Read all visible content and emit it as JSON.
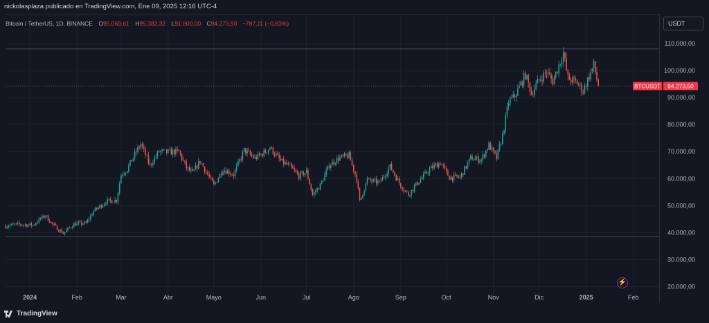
{
  "header": {
    "publisher_text": "nickolasplaza publicado en TradingView.com, Ene 09, 2025 12:16 UTC-4"
  },
  "legend": {
    "symbol": "Bitcoin / TetherUS, 1D, BINANCE",
    "open_label": "O",
    "open": "95.060,61",
    "high_label": "H",
    "high": "95.382,32",
    "low_label": "L",
    "low": "91.800,00",
    "close_label": "C",
    "close": "94.273,50",
    "change": "−787,11 (−0,83%)"
  },
  "currency_button": "USDT",
  "footer": {
    "brand": "TradingView"
  },
  "icons": {
    "logo": "tradingview-logo-icon",
    "alert": "lightning-bolt-icon"
  },
  "colors": {
    "up": "#26a69a",
    "down": "#ef5350",
    "background": "#131722",
    "price_label": "#f23645"
  },
  "chart_data": {
    "type": "candlestick",
    "symbol_tag": "BTCUSDT",
    "last_price_label": "94.273,50",
    "last_price": 94273.5,
    "ylim": [
      14000,
      121000
    ],
    "y_ticks": [
      {
        "value": 110000,
        "label": "110.000,00"
      },
      {
        "value": 100000,
        "label": "100.000,00"
      },
      {
        "value": 90000,
        "label": "90.000,00"
      },
      {
        "value": 80000,
        "label": "80.000,00"
      },
      {
        "value": 70000,
        "label": "70.000,00"
      },
      {
        "value": 60000,
        "label": "60.000,00"
      },
      {
        "value": 50000,
        "label": "50.000,00"
      },
      {
        "value": 40000,
        "label": "40.000,00"
      },
      {
        "value": 30000,
        "label": "30.000,00"
      },
      {
        "value": 20000,
        "label": "20.000,00"
      }
    ],
    "x_range": [
      "2023-12-16",
      "2025-02-18"
    ],
    "x_ticks": [
      {
        "date": "2024-01-01",
        "label": "2024",
        "bold": true
      },
      {
        "date": "2024-02-01",
        "label": "Feb"
      },
      {
        "date": "2024-03-01",
        "label": "Mar"
      },
      {
        "date": "2024-04-01",
        "label": "Abr"
      },
      {
        "date": "2024-05-01",
        "label": "Mayo"
      },
      {
        "date": "2024-06-01",
        "label": "Jun"
      },
      {
        "date": "2024-07-01",
        "label": "Jul"
      },
      {
        "date": "2024-08-01",
        "label": "Ago"
      },
      {
        "date": "2024-09-01",
        "label": "Sep"
      },
      {
        "date": "2024-10-01",
        "label": "Oct"
      },
      {
        "date": "2024-11-01",
        "label": "Nov"
      },
      {
        "date": "2024-12-01",
        "label": "Dic"
      },
      {
        "date": "2025-01-01",
        "label": "2025",
        "bold": true
      },
      {
        "date": "2025-02-01",
        "label": "Feb"
      }
    ],
    "horizontal_lines": [
      108000,
      38500
    ],
    "close_path": [
      [
        "2023-12-16",
        42500
      ],
      [
        "2023-12-24",
        43100
      ],
      [
        "2024-01-03",
        42800
      ],
      [
        "2024-01-11",
        46500
      ],
      [
        "2024-01-16",
        43000
      ],
      [
        "2024-01-23",
        39800
      ],
      [
        "2024-01-30",
        43200
      ],
      [
        "2024-02-07",
        43500
      ],
      [
        "2024-02-12",
        48000
      ],
      [
        "2024-02-20",
        51500
      ],
      [
        "2024-02-27",
        52000
      ],
      [
        "2024-03-01",
        61500
      ],
      [
        "2024-03-05",
        63500
      ],
      [
        "2024-03-10",
        69000
      ],
      [
        "2024-03-14",
        72800
      ],
      [
        "2024-03-20",
        65000
      ],
      [
        "2024-03-26",
        70000
      ],
      [
        "2024-04-01",
        69800
      ],
      [
        "2024-04-08",
        70000
      ],
      [
        "2024-04-13",
        64000
      ],
      [
        "2024-04-17",
        62000
      ],
      [
        "2024-04-22",
        66500
      ],
      [
        "2024-05-01",
        57500
      ],
      [
        "2024-05-07",
        63500
      ],
      [
        "2024-05-14",
        61500
      ],
      [
        "2024-05-21",
        70500
      ],
      [
        "2024-05-28",
        67500
      ],
      [
        "2024-06-04",
        70000
      ],
      [
        "2024-06-07",
        71500
      ],
      [
        "2024-06-14",
        66500
      ],
      [
        "2024-06-20",
        64500
      ],
      [
        "2024-06-26",
        61000
      ],
      [
        "2024-07-01",
        62500
      ],
      [
        "2024-07-05",
        54000
      ],
      [
        "2024-07-10",
        57500
      ],
      [
        "2024-07-16",
        65000
      ],
      [
        "2024-07-22",
        67500
      ],
      [
        "2024-07-29",
        68500
      ],
      [
        "2024-08-03",
        60000
      ],
      [
        "2024-08-05",
        51500
      ],
      [
        "2024-08-10",
        59500
      ],
      [
        "2024-08-18",
        58500
      ],
      [
        "2024-08-25",
        64500
      ],
      [
        "2024-09-01",
        57500
      ],
      [
        "2024-09-06",
        54000
      ],
      [
        "2024-09-12",
        58500
      ],
      [
        "2024-09-20",
        63500
      ],
      [
        "2024-09-27",
        66000
      ],
      [
        "2024-10-03",
        60500
      ],
      [
        "2024-10-10",
        60500
      ],
      [
        "2024-10-17",
        67500
      ],
      [
        "2024-10-24",
        67000
      ],
      [
        "2024-10-29",
        72500
      ],
      [
        "2024-11-03",
        67500
      ],
      [
        "2024-11-07",
        76000
      ],
      [
        "2024-11-11",
        88500
      ],
      [
        "2024-11-15",
        90500
      ],
      [
        "2024-11-22",
        98500
      ],
      [
        "2024-11-26",
        91500
      ],
      [
        "2024-12-01",
        96500
      ],
      [
        "2024-12-06",
        99500
      ],
      [
        "2024-12-10",
        96000
      ],
      [
        "2024-12-17",
        106500
      ],
      [
        "2024-12-20",
        97000
      ],
      [
        "2024-12-26",
        95500
      ],
      [
        "2024-12-30",
        92500
      ],
      [
        "2025-01-03",
        98000
      ],
      [
        "2025-01-06",
        102000
      ],
      [
        "2025-01-09",
        94273.5
      ]
    ]
  }
}
